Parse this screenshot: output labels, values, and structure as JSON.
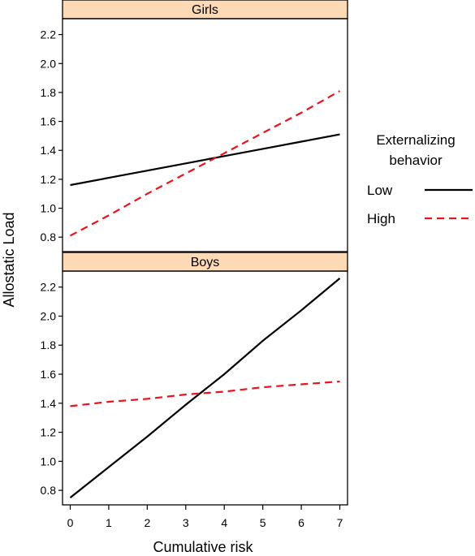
{
  "chart_data": {
    "type": "line",
    "ylabel": "Allostatic Load",
    "xlabel": "Cumulative risk",
    "x_ticks": [
      "0",
      "1",
      "2",
      "3",
      "4",
      "5",
      "6",
      "7"
    ],
    "y_ticks": [
      "0.8",
      "1.0",
      "1.2",
      "1.4",
      "1.6",
      "1.8",
      "2.0",
      "2.2"
    ],
    "xlim": [
      -0.2,
      7.2
    ],
    "ylim": [
      0.7,
      2.31
    ],
    "grid": false,
    "legend": {
      "title_line1": "Externalizing",
      "title_line2": "behavior",
      "placement": "right",
      "entries": [
        {
          "label": "Low",
          "color": "#000000",
          "dash": "solid"
        },
        {
          "label": "High",
          "color": "#e8141b",
          "dash": "dashed"
        }
      ]
    },
    "panels": [
      {
        "title": "Girls",
        "series": [
          {
            "name": "Low",
            "color": "#000000",
            "dash": "solid",
            "x": [
              0,
              1,
              2,
              3,
              4,
              5,
              6,
              7
            ],
            "y": [
              1.16,
              1.21,
              1.26,
              1.31,
              1.36,
              1.41,
              1.46,
              1.51
            ]
          },
          {
            "name": "High",
            "color": "#e8141b",
            "dash": "dashed",
            "x": [
              0,
              1,
              2,
              3,
              4,
              5,
              6,
              7
            ],
            "y": [
              0.81,
              0.95,
              1.1,
              1.24,
              1.38,
              1.52,
              1.66,
              1.81
            ]
          }
        ]
      },
      {
        "title": "Boys",
        "series": [
          {
            "name": "Low",
            "color": "#000000",
            "dash": "solid",
            "x": [
              0,
              1,
              2,
              3,
              4,
              5,
              6,
              7
            ],
            "y": [
              0.75,
              0.96,
              1.17,
              1.39,
              1.6,
              1.83,
              2.04,
              2.26
            ]
          },
          {
            "name": "High",
            "color": "#e8141b",
            "dash": "dashed",
            "x": [
              0,
              1,
              2,
              3,
              4,
              5,
              6,
              7
            ],
            "y": [
              1.38,
              1.41,
              1.43,
              1.46,
              1.48,
              1.51,
              1.53,
              1.55
            ]
          }
        ]
      }
    ]
  },
  "colors": {
    "strip_background": "#fdd9b5",
    "axis": "#000000"
  }
}
